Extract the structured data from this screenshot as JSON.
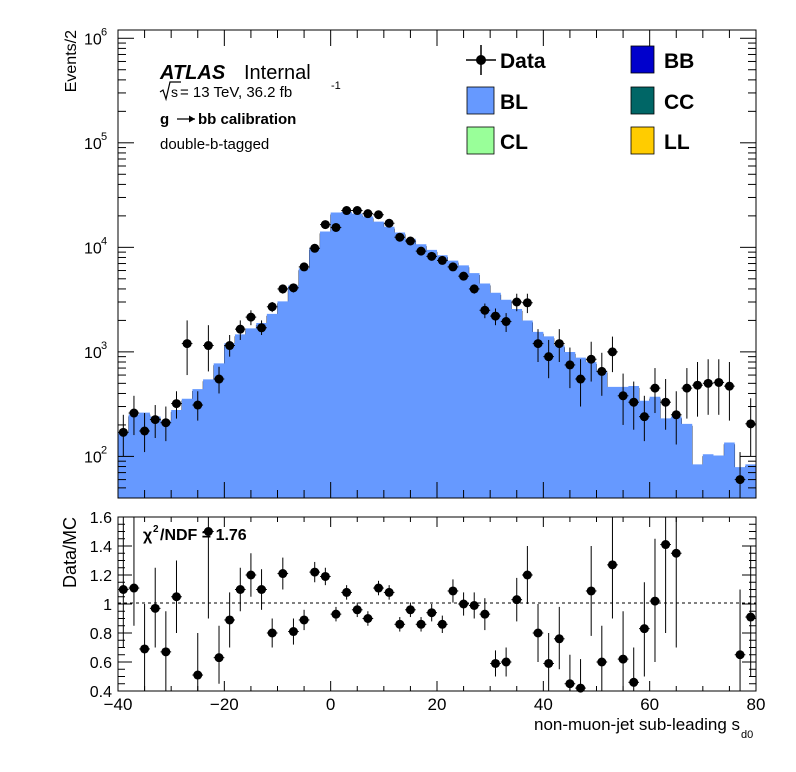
{
  "atlas": {
    "label": "ATLAS",
    "status": "Internal",
    "energy_prefix": "s",
    "energy_text": " = 13 TeV, 36.2 fb",
    "lumi_exp": "-1",
    "line2_a": "g",
    "line2_b": " bb calibration",
    "line3": "double-b-tagged"
  },
  "colors": {
    "BB": "#0000cc",
    "BL": "#6699ff",
    "CC": "#006666",
    "CL": "#99ff99",
    "LL": "#ffcc00",
    "data": "#000000"
  },
  "chart_data": [
    {
      "type": "histogram-stack",
      "ylabel": "Events/2",
      "yscale": "log",
      "ylim": [
        40,
        1200000
      ],
      "xlim": [
        -40,
        80
      ],
      "bin_width": 2,
      "y_ticks": [
        {
          "base": "10",
          "exp": "2",
          "value": 100
        },
        {
          "base": "10",
          "exp": "3",
          "value": 1000
        },
        {
          "base": "10",
          "exp": "4",
          "value": 10000
        },
        {
          "base": "10",
          "exp": "5",
          "value": 100000
        },
        {
          "base": "10",
          "exp": "6",
          "value": 1000000
        }
      ],
      "legend_position": "top-right",
      "legend": [
        {
          "key": "Data",
          "label": "Data",
          "marker": "point"
        },
        {
          "key": "BB",
          "label": "BB",
          "marker": "box"
        },
        {
          "key": "BL",
          "label": "BL",
          "marker": "box"
        },
        {
          "key": "CC",
          "label": "CC",
          "marker": "box"
        },
        {
          "key": "CL",
          "label": "CL",
          "marker": "box"
        },
        {
          "key": "LL",
          "label": "LL",
          "marker": "box"
        }
      ],
      "mc_total": [
        165,
        240,
        250,
        230,
        210,
        265,
        340,
        420,
        520,
        740,
        1150,
        1400,
        1600,
        1800,
        2200,
        2900,
        4100,
        6000,
        9500,
        13500,
        20500,
        20800,
        20000,
        18800,
        16800,
        15000,
        13200,
        11500,
        10200,
        9000,
        8000,
        7100,
        6400,
        5400,
        4300,
        3500,
        3000,
        2450,
        1900,
        1480,
        1340,
        1100,
        950,
        840,
        760,
        630,
        440,
        440,
        450,
        325,
        355,
        220,
        230,
        195,
        80,
        100,
        97,
        130,
        75,
        80
      ],
      "bl_total": [
        172,
        252,
        262,
        241,
        220,
        278,
        356,
        440,
        546,
        777,
        1208,
        1470,
        1680,
        1890,
        2310,
        3045,
        4300,
        6300,
        9975,
        14175,
        21525,
        21840,
        21000,
        19740,
        17640,
        15750,
        13860,
        12075,
        10710,
        9450,
        8400,
        7455,
        6720,
        5670,
        4515,
        3675,
        3150,
        2572,
        1995,
        1554,
        1407,
        1155,
        997,
        882,
        798,
        661,
        462,
        462,
        472,
        341,
        372,
        231,
        241,
        205,
        84,
        105,
        102,
        136,
        79,
        84
      ],
      "data_points": [
        {
          "x": -39,
          "y": 170,
          "lo": 100,
          "hi": 250
        },
        {
          "x": -37,
          "y": 260,
          "lo": 160,
          "hi": 380
        },
        {
          "x": -35,
          "y": 175,
          "lo": 110,
          "hi": 260
        },
        {
          "x": -33,
          "y": 225,
          "lo": 150,
          "hi": 310
        },
        {
          "x": -31,
          "y": 210,
          "lo": 140,
          "hi": 300
        },
        {
          "x": -29,
          "y": 320,
          "lo": 230,
          "hi": 420
        },
        {
          "x": -27,
          "y": 1200,
          "lo": 600,
          "hi": 2000
        },
        {
          "x": -25,
          "y": 310,
          "lo": 220,
          "hi": 420
        },
        {
          "x": -23,
          "y": 1150,
          "lo": 650,
          "hi": 1800
        },
        {
          "x": -21,
          "y": 550,
          "lo": 400,
          "hi": 720
        },
        {
          "x": -19,
          "y": 1150,
          "lo": 900,
          "hi": 1450
        },
        {
          "x": -17,
          "y": 1650,
          "lo": 1300,
          "hi": 2000
        },
        {
          "x": -15,
          "y": 2150,
          "lo": 1800,
          "hi": 2500
        },
        {
          "x": -13,
          "y": 1700,
          "lo": 1450,
          "hi": 2000
        },
        {
          "x": -11,
          "y": 2700,
          "lo": 2400,
          "hi": 3000
        },
        {
          "x": -9,
          "y": 4000,
          "lo": 3600,
          "hi": 4400
        },
        {
          "x": -7,
          "y": 4100,
          "lo": 3700,
          "hi": 4500
        },
        {
          "x": -5,
          "y": 6500,
          "lo": 6100,
          "hi": 6900
        },
        {
          "x": -3,
          "y": 9800,
          "lo": 9300,
          "hi": 10300
        },
        {
          "x": -1,
          "y": 16500,
          "lo": 15900,
          "hi": 17100
        },
        {
          "x": 1,
          "y": 15500,
          "lo": 14900,
          "hi": 16100
        },
        {
          "x": 3,
          "y": 22500,
          "lo": 21800,
          "hi": 23200
        },
        {
          "x": 5,
          "y": 22500,
          "lo": 21800,
          "hi": 23200
        },
        {
          "x": 7,
          "y": 21000,
          "lo": 20300,
          "hi": 21700
        },
        {
          "x": 9,
          "y": 20500,
          "lo": 19800,
          "hi": 21200
        },
        {
          "x": 11,
          "y": 17000,
          "lo": 16400,
          "hi": 17600
        },
        {
          "x": 13,
          "y": 12500,
          "lo": 12000,
          "hi": 13000
        },
        {
          "x": 15,
          "y": 11500,
          "lo": 11000,
          "hi": 12000
        },
        {
          "x": 17,
          "y": 9200,
          "lo": 8800,
          "hi": 9600
        },
        {
          "x": 19,
          "y": 8200,
          "lo": 7800,
          "hi": 8600
        },
        {
          "x": 21,
          "y": 7500,
          "lo": 7100,
          "hi": 7900
        },
        {
          "x": 23,
          "y": 6500,
          "lo": 6100,
          "hi": 6900
        },
        {
          "x": 25,
          "y": 5300,
          "lo": 4900,
          "hi": 5700
        },
        {
          "x": 27,
          "y": 4000,
          "lo": 3600,
          "hi": 4400
        },
        {
          "x": 29,
          "y": 2500,
          "lo": 2100,
          "hi": 2900
        },
        {
          "x": 31,
          "y": 2200,
          "lo": 1800,
          "hi": 2600
        },
        {
          "x": 33,
          "y": 1950,
          "lo": 1550,
          "hi": 2350
        },
        {
          "x": 35,
          "y": 3000,
          "lo": 2450,
          "hi": 3600
        },
        {
          "x": 37,
          "y": 2950,
          "lo": 2350,
          "hi": 3600
        },
        {
          "x": 39,
          "y": 1200,
          "lo": 800,
          "hi": 1650
        },
        {
          "x": 41,
          "y": 900,
          "lo": 560,
          "hi": 1300
        },
        {
          "x": 43,
          "y": 1200,
          "lo": 800,
          "hi": 1650
        },
        {
          "x": 45,
          "y": 750,
          "lo": 450,
          "hi": 1100
        },
        {
          "x": 47,
          "y": 550,
          "lo": 300,
          "hi": 850
        },
        {
          "x": 49,
          "y": 850,
          "lo": 520,
          "hi": 1250
        },
        {
          "x": 51,
          "y": 650,
          "lo": 380,
          "hi": 980
        },
        {
          "x": 53,
          "y": 1000,
          "lo": 640,
          "hi": 1400
        },
        {
          "x": 55,
          "y": 380,
          "lo": 200,
          "hi": 620
        },
        {
          "x": 57,
          "y": 330,
          "lo": 180,
          "hi": 520
        },
        {
          "x": 59,
          "y": 240,
          "lo": 140,
          "hi": 380
        },
        {
          "x": 61,
          "y": 450,
          "lo": 260,
          "hi": 700
        },
        {
          "x": 63,
          "y": 330,
          "lo": 180,
          "hi": 550
        },
        {
          "x": 65,
          "y": 250,
          "lo": 130,
          "hi": 420
        },
        {
          "x": 67,
          "y": 450,
          "lo": 230,
          "hi": 700
        },
        {
          "x": 69,
          "y": 480,
          "lo": 240,
          "hi": 800
        },
        {
          "x": 71,
          "y": 500,
          "lo": 250,
          "hi": 850
        },
        {
          "x": 73,
          "y": 510,
          "lo": 250,
          "hi": 850
        },
        {
          "x": 75,
          "y": 470,
          "lo": 220,
          "hi": 800
        },
        {
          "x": 77,
          "y": 60,
          "lo": 30,
          "hi": 110
        },
        {
          "x": 79,
          "y": 205,
          "lo": 100,
          "hi": 360
        }
      ]
    },
    {
      "type": "scatter",
      "ylabel": "Data/MC",
      "xlabel_main": "non-muon-jet sub-leading s",
      "xlabel_sub": "d0",
      "xlim": [
        -40,
        80
      ],
      "ylim": [
        0.4,
        1.6
      ],
      "x_ticks": [
        "−40",
        "−20",
        "0",
        "20",
        "40",
        "60",
        "80"
      ],
      "x_tick_values": [
        -40,
        -20,
        0,
        20,
        40,
        60,
        80
      ],
      "y_ticks": [
        "0.4",
        "0.6",
        "0.8",
        "1",
        "1.2",
        "1.4",
        "1.6"
      ],
      "y_tick_values": [
        0.4,
        0.6,
        0.8,
        1.0,
        1.2,
        1.4,
        1.6
      ],
      "reference_line": 1.0,
      "annotation_prefix": "χ",
      "annotation_exp": "2",
      "annotation_text": "/NDF = 1.76",
      "points": [
        {
          "x": -39,
          "y": 1.1,
          "lo": 0.7,
          "hi": 1.6
        },
        {
          "x": -37,
          "y": 1.11,
          "lo": 0.85,
          "hi": 1.6
        },
        {
          "x": -35,
          "y": 0.69,
          "lo": 0.4,
          "hi": 1.0
        },
        {
          "x": -33,
          "y": 0.97,
          "lo": 0.7,
          "hi": 1.25
        },
        {
          "x": -31,
          "y": 0.67,
          "lo": 0.4,
          "hi": 0.95
        },
        {
          "x": -29,
          "y": 1.05,
          "lo": 0.8,
          "hi": 1.3
        },
        {
          "x": -25,
          "y": 0.51,
          "lo": 0.4,
          "hi": 0.8
        },
        {
          "x": -23,
          "y": 1.5,
          "lo": 0.9,
          "hi": 1.6
        },
        {
          "x": -21,
          "y": 0.63,
          "lo": 0.45,
          "hi": 0.85
        },
        {
          "x": -19,
          "y": 0.89,
          "lo": 0.7,
          "hi": 1.08
        },
        {
          "x": -17,
          "y": 1.1,
          "lo": 0.95,
          "hi": 1.25
        },
        {
          "x": -15,
          "y": 1.2,
          "lo": 1.05,
          "hi": 1.35
        },
        {
          "x": -13,
          "y": 1.1,
          "lo": 0.96,
          "hi": 1.24
        },
        {
          "x": -11,
          "y": 0.8,
          "lo": 0.7,
          "hi": 0.9
        },
        {
          "x": -9,
          "y": 1.21,
          "lo": 1.1,
          "hi": 1.32
        },
        {
          "x": -7,
          "y": 0.81,
          "lo": 0.72,
          "hi": 0.9
        },
        {
          "x": -5,
          "y": 0.89,
          "lo": 0.82,
          "hi": 0.96
        },
        {
          "x": -3,
          "y": 1.22,
          "lo": 1.15,
          "hi": 1.29
        },
        {
          "x": -1,
          "y": 1.19,
          "lo": 1.13,
          "hi": 1.25
        },
        {
          "x": 1,
          "y": 0.93,
          "lo": 0.88,
          "hi": 0.98
        },
        {
          "x": 3,
          "y": 1.08,
          "lo": 1.03,
          "hi": 1.13
        },
        {
          "x": 5,
          "y": 0.96,
          "lo": 0.91,
          "hi": 1.01
        },
        {
          "x": 7,
          "y": 0.9,
          "lo": 0.85,
          "hi": 0.95
        },
        {
          "x": 9,
          "y": 1.11,
          "lo": 1.06,
          "hi": 1.16
        },
        {
          "x": 11,
          "y": 1.08,
          "lo": 1.03,
          "hi": 1.13
        },
        {
          "x": 13,
          "y": 0.86,
          "lo": 0.81,
          "hi": 0.91
        },
        {
          "x": 15,
          "y": 0.96,
          "lo": 0.91,
          "hi": 1.01
        },
        {
          "x": 17,
          "y": 0.86,
          "lo": 0.81,
          "hi": 0.91
        },
        {
          "x": 19,
          "y": 0.94,
          "lo": 0.88,
          "hi": 1.0
        },
        {
          "x": 21,
          "y": 0.86,
          "lo": 0.8,
          "hi": 0.92
        },
        {
          "x": 23,
          "y": 1.09,
          "lo": 1.01,
          "hi": 1.17
        },
        {
          "x": 25,
          "y": 1.0,
          "lo": 0.92,
          "hi": 1.08
        },
        {
          "x": 27,
          "y": 0.99,
          "lo": 0.9,
          "hi": 1.08
        },
        {
          "x": 29,
          "y": 0.93,
          "lo": 0.82,
          "hi": 1.04
        },
        {
          "x": 31,
          "y": 0.59,
          "lo": 0.5,
          "hi": 0.68
        },
        {
          "x": 33,
          "y": 0.6,
          "lo": 0.5,
          "hi": 0.7
        },
        {
          "x": 35,
          "y": 1.03,
          "lo": 0.88,
          "hi": 1.18
        },
        {
          "x": 37,
          "y": 1.2,
          "lo": 1.0,
          "hi": 1.4
        },
        {
          "x": 39,
          "y": 0.8,
          "lo": 0.6,
          "hi": 1.0
        },
        {
          "x": 41,
          "y": 0.59,
          "lo": 0.4,
          "hi": 0.8
        },
        {
          "x": 43,
          "y": 0.76,
          "lo": 0.55,
          "hi": 0.98
        },
        {
          "x": 45,
          "y": 0.45,
          "lo": 0.4,
          "hi": 0.65
        },
        {
          "x": 47,
          "y": 0.42,
          "lo": 0.4,
          "hi": 0.62
        },
        {
          "x": 49,
          "y": 1.09,
          "lo": 0.78,
          "hi": 1.4
        },
        {
          "x": 51,
          "y": 0.6,
          "lo": 0.4,
          "hi": 0.85
        },
        {
          "x": 53,
          "y": 1.27,
          "lo": 0.9,
          "hi": 1.6
        },
        {
          "x": 55,
          "y": 0.62,
          "lo": 0.4,
          "hi": 0.95
        },
        {
          "x": 57,
          "y": 0.46,
          "lo": 0.4,
          "hi": 0.7
        },
        {
          "x": 59,
          "y": 0.83,
          "lo": 0.5,
          "hi": 1.15
        },
        {
          "x": 61,
          "y": 1.02,
          "lo": 0.6,
          "hi": 1.45
        },
        {
          "x": 63,
          "y": 1.41,
          "lo": 0.8,
          "hi": 1.6
        },
        {
          "x": 65,
          "y": 1.35,
          "lo": 0.7,
          "hi": 1.6
        },
        {
          "x": 77,
          "y": 0.65,
          "lo": 0.4,
          "hi": 1.1
        },
        {
          "x": 79,
          "y": 0.91,
          "lo": 0.5,
          "hi": 1.4
        }
      ]
    }
  ]
}
